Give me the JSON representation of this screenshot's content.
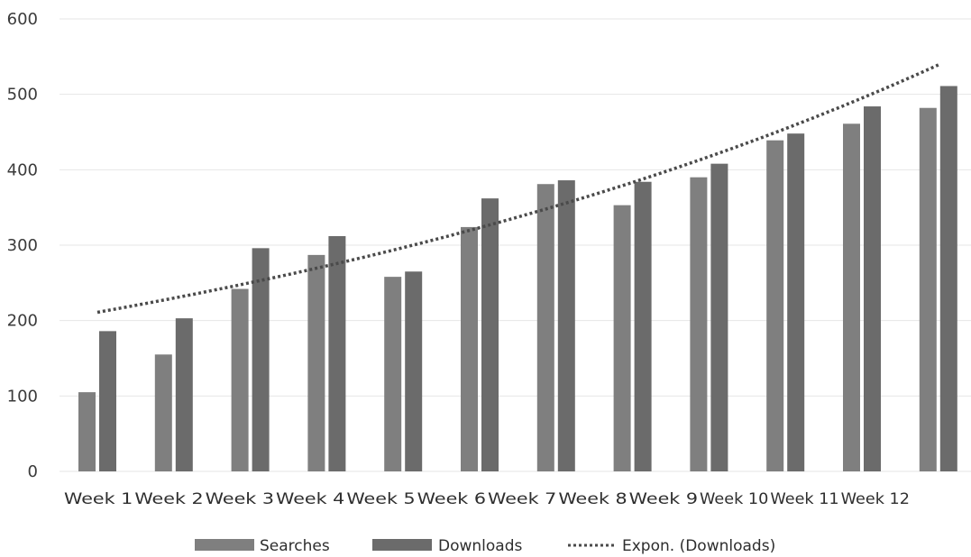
{
  "colors": {
    "searches": "#7f7f7f",
    "downloads": "#6b6b6b",
    "trend": "#4a4a4a",
    "grid": "#e6e6e6"
  },
  "chart_data": {
    "type": "bar",
    "categories": [
      "Week 1",
      "Week 2",
      "Week 3",
      "Week 4",
      "Week 5",
      "Week 6",
      "Week 7",
      "Week 8",
      "Week 9",
      "Week 10",
      "Week 11",
      "Week 12"
    ],
    "series": [
      {
        "name": "Searches",
        "values": [
          105,
          155,
          242,
          287,
          258,
          324,
          381,
          353,
          390,
          439,
          461,
          482
        ]
      },
      {
        "name": "Downloads",
        "values": [
          186,
          203,
          296,
          312,
          265,
          362,
          386,
          384,
          408,
          448,
          484,
          511
        ]
      }
    ],
    "trendline": {
      "name": "Expon. (Downloads)",
      "type": "exponential",
      "start": 211,
      "end": 539
    },
    "title": "",
    "xlabel": "",
    "ylabel": "",
    "ylim": [
      0,
      600
    ],
    "yticks": [
      0,
      100,
      200,
      300,
      400,
      500,
      600
    ],
    "grid": true,
    "legend": "bottom"
  }
}
